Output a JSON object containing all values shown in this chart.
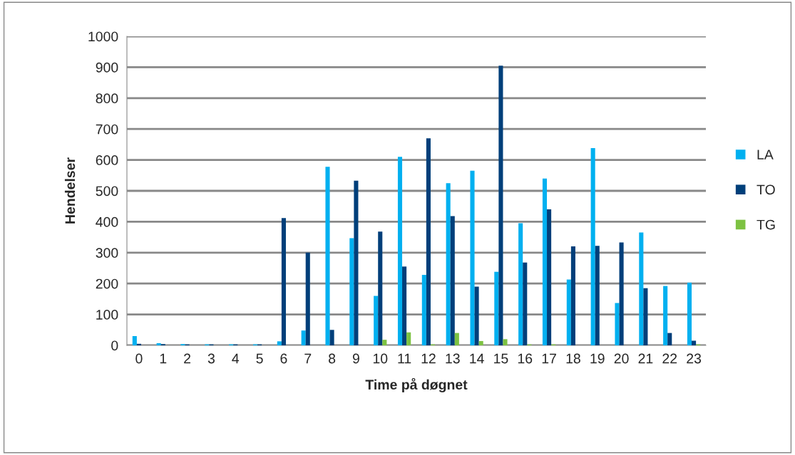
{
  "chart_data": {
    "type": "bar",
    "xlabel": "Time på døgnet",
    "ylabel": "Hendelser",
    "categories": [
      "0",
      "1",
      "2",
      "3",
      "4",
      "5",
      "6",
      "7",
      "8",
      "9",
      "10",
      "11",
      "12",
      "13",
      "14",
      "15",
      "16",
      "17",
      "18",
      "19",
      "20",
      "21",
      "22",
      "23"
    ],
    "series": [
      {
        "name": "LA",
        "color": "#00b0f0",
        "values": [
          30,
          7,
          4,
          3,
          3,
          3,
          13,
          48,
          578,
          347,
          160,
          610,
          228,
          525,
          565,
          238,
          395,
          540,
          213,
          638,
          137,
          365,
          192,
          203
        ]
      },
      {
        "name": "TO",
        "color": "#003f7a",
        "values": [
          5,
          4,
          3,
          3,
          3,
          3,
          412,
          300,
          50,
          533,
          368,
          255,
          670,
          418,
          190,
          905,
          268,
          440,
          320,
          322,
          333,
          185,
          40,
          15
        ]
      },
      {
        "name": "TG",
        "color": "#7dc242",
        "values": [
          0,
          0,
          0,
          0,
          0,
          0,
          0,
          0,
          0,
          0,
          18,
          42,
          3,
          40,
          14,
          20,
          3,
          3,
          0,
          0,
          0,
          0,
          0,
          3
        ]
      }
    ],
    "ylim": [
      0,
      1000
    ],
    "yticks": [
      0,
      100,
      200,
      300,
      400,
      500,
      600,
      700,
      800,
      900,
      1000
    ],
    "grid": "y",
    "legend": "right"
  }
}
